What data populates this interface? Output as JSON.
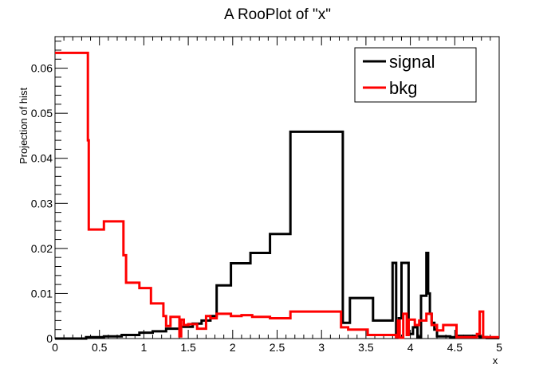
{
  "chart_data": {
    "type": "line",
    "title": "A RooPlot of \"x\"",
    "xlabel": "x",
    "ylabel": "Projection of hist",
    "xlim": [
      0,
      5
    ],
    "ylim": [
      0,
      0.067
    ],
    "x_ticks": [
      "0",
      "0.5",
      "1",
      "1.5",
      "2",
      "2.5",
      "3",
      "3.5",
      "4",
      "4.5",
      "5"
    ],
    "y_ticks": [
      "0",
      "0.01",
      "0.02",
      "0.03",
      "0.04",
      "0.05",
      "0.06"
    ],
    "legend_position": "top-right",
    "grid": false,
    "series": [
      {
        "name": "signal",
        "color": "#000000",
        "x": [
          0,
          0.35,
          0.35,
          0.55,
          0.55,
          0.75,
          0.75,
          0.95,
          0.95,
          1.1,
          1.1,
          1.25,
          1.25,
          1.4,
          1.4,
          1.55,
          1.55,
          1.65,
          1.65,
          1.75,
          1.75,
          1.82,
          1.82,
          1.98,
          1.98,
          2.2,
          2.2,
          2.42,
          2.42,
          2.65,
          2.65,
          3.24,
          3.24,
          3.32,
          3.32,
          3.58,
          3.58,
          3.8,
          3.8,
          3.84,
          3.84,
          3.87,
          3.87,
          3.9,
          3.9,
          3.98,
          3.98,
          4.03,
          4.03,
          4.08,
          4.08,
          4.12,
          4.12,
          4.18,
          4.18,
          4.2,
          4.2,
          4.22,
          4.22,
          4.24,
          4.24,
          4.27,
          4.27,
          4.3,
          4.3,
          4.45,
          4.45,
          4.52,
          4.52,
          4.78,
          4.78,
          4.82,
          4.82,
          4.86,
          4.86,
          5
        ],
        "y": [
          0,
          0,
          0.0003,
          0.0003,
          0.0005,
          0.0005,
          0.0008,
          0.0008,
          0.0013,
          0.0013,
          0.0016,
          0.0016,
          0.0022,
          0.0022,
          0.0026,
          0.0026,
          0.0033,
          0.0033,
          0.004,
          0.004,
          0.005,
          0.005,
          0.0118,
          0.0118,
          0.0167,
          0.0167,
          0.019,
          0.019,
          0.0232,
          0.0232,
          0.0459,
          0.0459,
          0.0035,
          0.0035,
          0.009,
          0.009,
          0.004,
          0.004,
          0.0168,
          0.0168,
          0.0003,
          0.0003,
          0.0045,
          0.0045,
          0.0168,
          0.0168,
          0.001,
          0.001,
          0.0025,
          0.0025,
          0.0003,
          0.0003,
          0.0095,
          0.0095,
          0.019,
          0.019,
          0.01,
          0.01,
          0.0055,
          0.0055,
          0.0035,
          0.0035,
          0.002,
          0.002,
          0.0005,
          0.0005,
          0.0003,
          0.0003,
          0.0006,
          0.0006,
          0.0003,
          0.0003,
          0.0003,
          0.0003,
          0.0001,
          0.0001
        ]
      },
      {
        "name": "bkg",
        "color": "#ff0000",
        "x": [
          0,
          0.37,
          0.37,
          0.38,
          0.38,
          0.55,
          0.55,
          0.77,
          0.77,
          0.8,
          0.8,
          0.95,
          0.95,
          1.08,
          1.08,
          1.22,
          1.22,
          1.25,
          1.25,
          1.3,
          1.3,
          1.4,
          1.4,
          1.42,
          1.42,
          1.45,
          1.45,
          1.5,
          1.5,
          1.6,
          1.6,
          1.7,
          1.7,
          1.75,
          1.75,
          1.82,
          1.82,
          1.98,
          1.98,
          2.1,
          2.1,
          2.22,
          2.22,
          2.42,
          2.42,
          2.65,
          2.65,
          3.22,
          3.22,
          3.3,
          3.3,
          3.52,
          3.52,
          3.84,
          3.84,
          3.86,
          3.86,
          3.88,
          3.88,
          3.92,
          3.92,
          3.96,
          3.96,
          3.98,
          3.98,
          4.05,
          4.05,
          4.1,
          4.1,
          4.18,
          4.18,
          4.24,
          4.24,
          4.3,
          4.3,
          4.37,
          4.37,
          4.52,
          4.52,
          4.75,
          4.75,
          4.78,
          4.78,
          4.82,
          4.82,
          4.86,
          4.86,
          5
        ],
        "y": [
          0.0634,
          0.0634,
          0.044,
          0.044,
          0.0242,
          0.0242,
          0.026,
          0.026,
          0.0185,
          0.0185,
          0.0124,
          0.0124,
          0.0112,
          0.0112,
          0.0078,
          0.0078,
          0.005,
          0.005,
          0.0028,
          0.0028,
          0.0048,
          0.0048,
          0.0005,
          0.0005,
          0.0042,
          0.0042,
          0.003,
          0.003,
          0.0032,
          0.0032,
          0.0022,
          0.0022,
          0.005,
          0.005,
          0.0045,
          0.0045,
          0.0055,
          0.0055,
          0.005,
          0.005,
          0.0052,
          0.0052,
          0.0048,
          0.0048,
          0.0045,
          0.0045,
          0.006,
          0.006,
          0.0025,
          0.0025,
          0.002,
          0.002,
          0.0008,
          0.0008,
          0.0003,
          0.0003,
          0.004,
          0.004,
          0.0002,
          0.0002,
          0.0055,
          0.0055,
          0.0008,
          0.0008,
          0.0042,
          0.0042,
          0.003,
          0.003,
          0.004,
          0.004,
          0.0055,
          0.0055,
          0.003,
          0.003,
          0.0018,
          0.0018,
          0.003,
          0.003,
          0.0003,
          0.0003,
          0.001,
          0.001,
          0.006,
          0.006,
          0.0003,
          0.0003,
          0.0003,
          0.0003
        ]
      }
    ]
  }
}
